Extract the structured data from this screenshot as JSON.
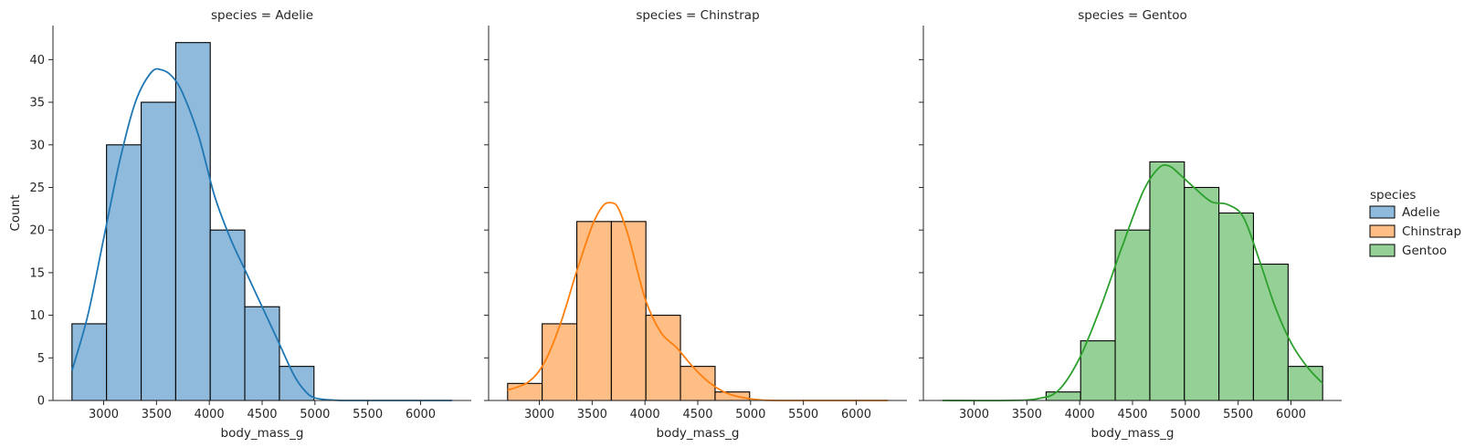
{
  "legend": {
    "title": "species",
    "entries": [
      {
        "label": "Adelie",
        "color": "#1f77b4",
        "fill": "#8fbadb"
      },
      {
        "label": "Chinstrap",
        "color": "#ff7f0e",
        "fill": "#ffbe85"
      },
      {
        "label": "Gentoo",
        "color": "#2ca02c",
        "fill": "#95d096"
      }
    ]
  },
  "chart_data": [
    {
      "type": "bar",
      "title": "species = Adelie",
      "xlabel": "body_mass_g",
      "ylabel": "Count",
      "xlim": [
        2520,
        6480
      ],
      "ylim": [
        0,
        44
      ],
      "xticks": [
        3000,
        3500,
        4000,
        4500,
        5000,
        5500,
        6000
      ],
      "yticks": [
        0,
        5,
        10,
        15,
        20,
        25,
        30,
        35,
        40
      ],
      "bin_edges": [
        2700,
        3027,
        3355,
        3682,
        4009,
        4336,
        4664,
        4991
      ],
      "values": [
        9,
        30,
        35,
        42,
        20,
        11,
        4
      ],
      "kde": {
        "x": [
          2700,
          2850,
          3000,
          3150,
          3300,
          3450,
          3550,
          3650,
          3750,
          3900,
          4050,
          4200,
          4350,
          4500,
          4650,
          4800,
          4900,
          5000,
          5200,
          5500,
          6000,
          6300
        ],
        "y": [
          3.5,
          10,
          19,
          28,
          35,
          38.5,
          38.8,
          38,
          36,
          31,
          24,
          19,
          15,
          11,
          7,
          3,
          1.2,
          0.3,
          0.03,
          0,
          0,
          0
        ]
      },
      "color": "#1f77b4",
      "fill": "#8fbadb"
    },
    {
      "type": "bar",
      "title": "species = Chinstrap",
      "xlabel": "body_mass_g",
      "ylabel": "",
      "xlim": [
        2520,
        6480
      ],
      "ylim": [
        0,
        44
      ],
      "xticks": [
        3000,
        3500,
        4000,
        4500,
        5000,
        5500,
        6000
      ],
      "yticks": [
        0,
        5,
        10,
        15,
        20,
        25,
        30,
        35,
        40
      ],
      "bin_edges": [
        2700,
        3027,
        3355,
        3682,
        4009,
        4336,
        4664,
        4991
      ],
      "values": [
        2,
        9,
        21,
        21,
        10,
        4,
        1
      ],
      "kde": {
        "x": [
          2700,
          2900,
          3050,
          3200,
          3350,
          3500,
          3600,
          3680,
          3750,
          3850,
          4000,
          4150,
          4300,
          4450,
          4600,
          4750,
          4900,
          5100,
          5400,
          6000,
          6300
        ],
        "y": [
          1.2,
          2.2,
          4.5,
          9,
          15,
          20.5,
          22.8,
          23.2,
          22.5,
          19,
          12,
          8,
          6.2,
          4,
          2.2,
          1,
          0.4,
          0.05,
          0,
          0,
          0
        ]
      },
      "color": "#ff7f0e",
      "fill": "#ffbe85"
    },
    {
      "type": "bar",
      "title": "species = Gentoo",
      "xlabel": "body_mass_g",
      "ylabel": "",
      "xlim": [
        2520,
        6480
      ],
      "ylim": [
        0,
        44
      ],
      "xticks": [
        3000,
        3500,
        4000,
        4500,
        5000,
        5500,
        6000
      ],
      "yticks": [
        0,
        5,
        10,
        15,
        20,
        25,
        30,
        35,
        40
      ],
      "bin_edges": [
        3682,
        4009,
        4336,
        4664,
        4991,
        5318,
        5645,
        5973,
        6300
      ],
      "values": [
        1,
        7,
        20,
        28,
        25,
        22,
        16,
        4
      ],
      "kde": {
        "x": [
          2700,
          3300,
          3600,
          3800,
          4000,
          4200,
          4400,
          4600,
          4750,
          4850,
          4950,
          5100,
          5250,
          5400,
          5550,
          5700,
          5850,
          6000,
          6150,
          6300
        ],
        "y": [
          0,
          0,
          0.2,
          1.2,
          5,
          11,
          18,
          24.5,
          27.3,
          27.5,
          26.5,
          24.8,
          23.3,
          23,
          21.5,
          16.5,
          11,
          6.8,
          4,
          2
        ]
      },
      "color": "#2ca02c",
      "fill": "#95d096"
    }
  ]
}
